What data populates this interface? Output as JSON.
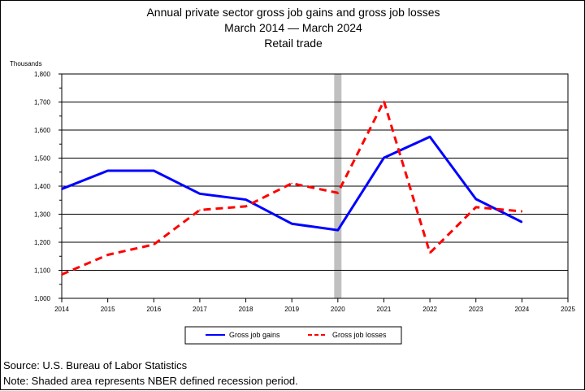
{
  "chart_data": {
    "type": "line",
    "title": [
      "Annual private sector gross job gains and gross job losses",
      "March 2014 — March 2024",
      "Retail trade"
    ],
    "ylabel": "Thousands",
    "xlabel": "",
    "x": [
      2014,
      2015,
      2016,
      2017,
      2018,
      2019,
      2020,
      2021,
      2022,
      2023,
      2024
    ],
    "xlim": [
      2014,
      2025
    ],
    "x_ticks": [
      "2014",
      "2015",
      "2016",
      "2017",
      "2018",
      "2019",
      "2020",
      "2021",
      "2022",
      "2023",
      "2024",
      "2025"
    ],
    "ylim": [
      1000,
      1800
    ],
    "y_ticks": [
      "1,000",
      "1,100",
      "1,200",
      "1,300",
      "1,400",
      "1,500",
      "1,600",
      "1,700",
      "1,800"
    ],
    "grid": "horizontal",
    "legend": "bottom-center",
    "recession": {
      "year": 2020
    },
    "series": [
      {
        "name": "Gross job gains",
        "color": "#0000ff",
        "style": "solid",
        "values": [
          1390,
          1455,
          1455,
          1373,
          1352,
          1266,
          1243,
          1501,
          1576,
          1354,
          1272
        ]
      },
      {
        "name": "Gross job losses",
        "color": "#ff0000",
        "style": "dashed",
        "values": [
          1085,
          1155,
          1192,
          1315,
          1328,
          1410,
          1376,
          1703,
          1162,
          1325,
          1310
        ]
      }
    ]
  },
  "footer": {
    "source": "Source: U.S. Bureau of Labor Statistics",
    "note": "Note: Shaded area represents NBER defined recession period."
  }
}
